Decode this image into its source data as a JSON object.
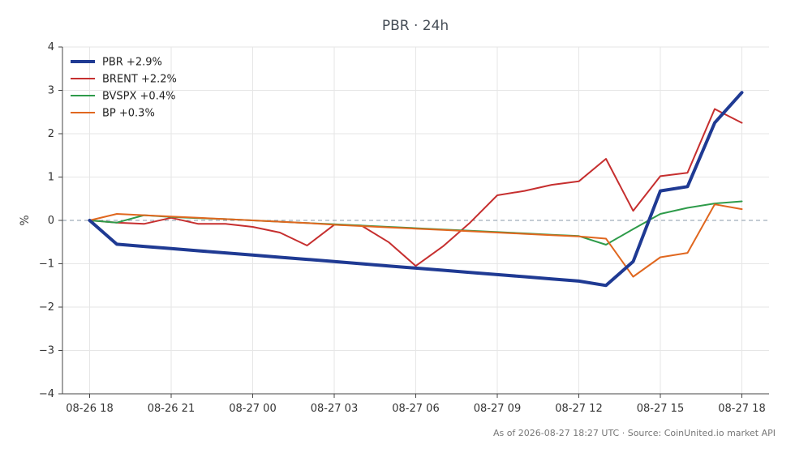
{
  "chart_data": {
    "type": "line",
    "title": "PBR · 24h",
    "xlabel": "",
    "ylabel": "%",
    "ylim": [
      -4,
      4
    ],
    "yticks": [
      4,
      3,
      2,
      1,
      0,
      -1,
      -2,
      -3,
      -4
    ],
    "ytick_labels": [
      "4",
      "3",
      "2",
      "1",
      "0",
      "−1",
      "−2",
      "−3",
      "−4"
    ],
    "x_range": [
      "2026-08-26 17:00",
      "2026-08-27 19:00"
    ],
    "x": [
      "2026-08-26 18:00",
      "2026-08-26 19:00",
      "2026-08-26 20:00",
      "2026-08-26 21:00",
      "2026-08-26 22:00",
      "2026-08-26 23:00",
      "2026-08-27 00:00",
      "2026-08-27 01:00",
      "2026-08-27 02:00",
      "2026-08-27 03:00",
      "2026-08-27 04:00",
      "2026-08-27 05:00",
      "2026-08-27 06:00",
      "2026-08-27 07:00",
      "2026-08-27 08:00",
      "2026-08-27 09:00",
      "2026-08-27 10:00",
      "2026-08-27 11:00",
      "2026-08-27 12:00",
      "2026-08-27 13:00",
      "2026-08-27 14:00",
      "2026-08-27 15:00",
      "2026-08-27 16:00",
      "2026-08-27 17:00",
      "2026-08-27 18:00"
    ],
    "xticks": [
      "2026-08-26 18:00",
      "2026-08-26 21:00",
      "2026-08-27 00:00",
      "2026-08-27 03:00",
      "2026-08-27 06:00",
      "2026-08-27 09:00",
      "2026-08-27 12:00",
      "2026-08-27 15:00",
      "2026-08-27 18:00"
    ],
    "xtick_labels": [
      "08-26 18",
      "08-26 21",
      "08-27 00",
      "08-27 03",
      "08-27 06",
      "08-27 09",
      "08-27 12",
      "08-27 15",
      "08-27 18"
    ],
    "series": [
      {
        "name": "PBR +2.9%",
        "color": "#1f3a93",
        "width": "thick",
        "values": [
          0.0,
          -0.55,
          -0.6,
          -0.65,
          -0.7,
          -0.75,
          -0.8,
          -0.85,
          -0.9,
          -0.95,
          -1.0,
          -1.05,
          -1.1,
          -1.15,
          -1.2,
          -1.25,
          -1.3,
          -1.35,
          -1.4,
          -1.5,
          -0.95,
          0.68,
          0.78,
          2.25,
          2.95
        ]
      },
      {
        "name": "BRENT +2.2%",
        "color": "#c62f2f",
        "width": "normal",
        "values": [
          0.0,
          -0.05,
          -0.08,
          0.06,
          -0.08,
          -0.08,
          -0.15,
          -0.28,
          -0.58,
          -0.1,
          -0.12,
          -0.5,
          -1.05,
          -0.6,
          -0.05,
          0.58,
          0.68,
          0.82,
          0.9,
          1.42,
          0.22,
          1.02,
          1.1,
          2.57,
          2.25
        ]
      },
      {
        "name": "BVSPX +0.4%",
        "color": "#2e9b4a",
        "width": "normal",
        "values": [
          0.0,
          -0.05,
          0.12,
          0.08,
          0.05,
          0.03,
          0.0,
          -0.03,
          -0.06,
          -0.09,
          -0.12,
          -0.15,
          -0.18,
          -0.21,
          -0.24,
          -0.27,
          -0.3,
          -0.33,
          -0.36,
          -0.56,
          -0.2,
          0.15,
          0.29,
          0.39,
          0.44
        ]
      },
      {
        "name": "BP +0.3%",
        "color": "#e0671f",
        "width": "normal",
        "values": [
          0.0,
          0.15,
          0.12,
          0.09,
          0.06,
          0.03,
          0.0,
          -0.03,
          -0.06,
          -0.1,
          -0.13,
          -0.16,
          -0.19,
          -0.22,
          -0.25,
          -0.28,
          -0.31,
          -0.34,
          -0.37,
          -0.42,
          -1.3,
          -0.85,
          -0.75,
          0.37,
          0.26
        ]
      }
    ],
    "zero_line": {
      "value": 0,
      "style": "dashed"
    },
    "grid": true,
    "legend": "top-left",
    "footer": "As of 2026-08-27 18:27 UTC · Source: CoinUnited.io market API"
  }
}
